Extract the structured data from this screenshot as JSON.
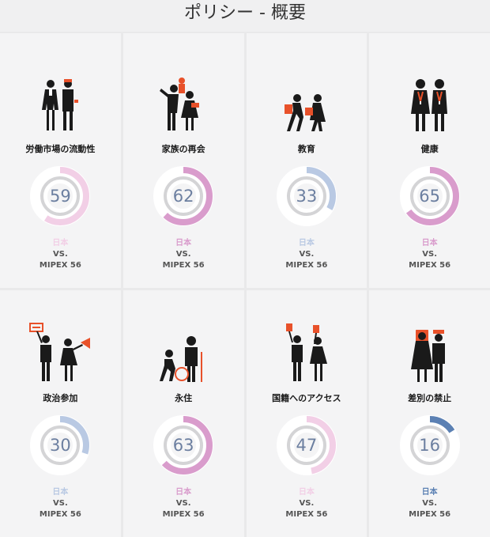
{
  "page": {
    "title": "ポリシー - 概要"
  },
  "cards": [
    {
      "label": "労働市場の流動性",
      "score": 59,
      "country": "日本",
      "vs": "VS.",
      "mipex": "MIPEX 56",
      "color": "#f2cfe6",
      "icon": "worker-couple-icon"
    },
    {
      "label": "家族の再会",
      "score": 62,
      "country": "日本",
      "vs": "VS.",
      "mipex": "MIPEX 56",
      "color": "#d99ccc",
      "icon": "family-reunion-icon"
    },
    {
      "label": "教育",
      "score": 33,
      "country": "日本",
      "vs": "VS.",
      "mipex": "MIPEX 56",
      "color": "#b9c9e3",
      "icon": "students-icon"
    },
    {
      "label": "健康",
      "score": 65,
      "country": "日本",
      "vs": "VS.",
      "mipex": "MIPEX 56",
      "color": "#d99ccc",
      "icon": "doctors-icon"
    },
    {
      "label": "政治参加",
      "score": 30,
      "country": "日本",
      "vs": "VS.",
      "mipex": "MIPEX 56",
      "color": "#b9c9e3",
      "icon": "rally-icon"
    },
    {
      "label": "永住",
      "score": 63,
      "country": "日本",
      "vs": "VS.",
      "mipex": "MIPEX 56",
      "color": "#d99ccc",
      "icon": "family-with-child-icon"
    },
    {
      "label": "国籍へのアクセス",
      "score": 47,
      "country": "日本",
      "vs": "VS.",
      "mipex": "MIPEX 56",
      "color": "#f2cfe6",
      "icon": "voters-icon"
    },
    {
      "label": "差別の禁止",
      "score": 16,
      "country": "日本",
      "vs": "VS.",
      "mipex": "MIPEX 56",
      "color": "#5b80b3",
      "icon": "diverse-couple-icon"
    }
  ]
}
